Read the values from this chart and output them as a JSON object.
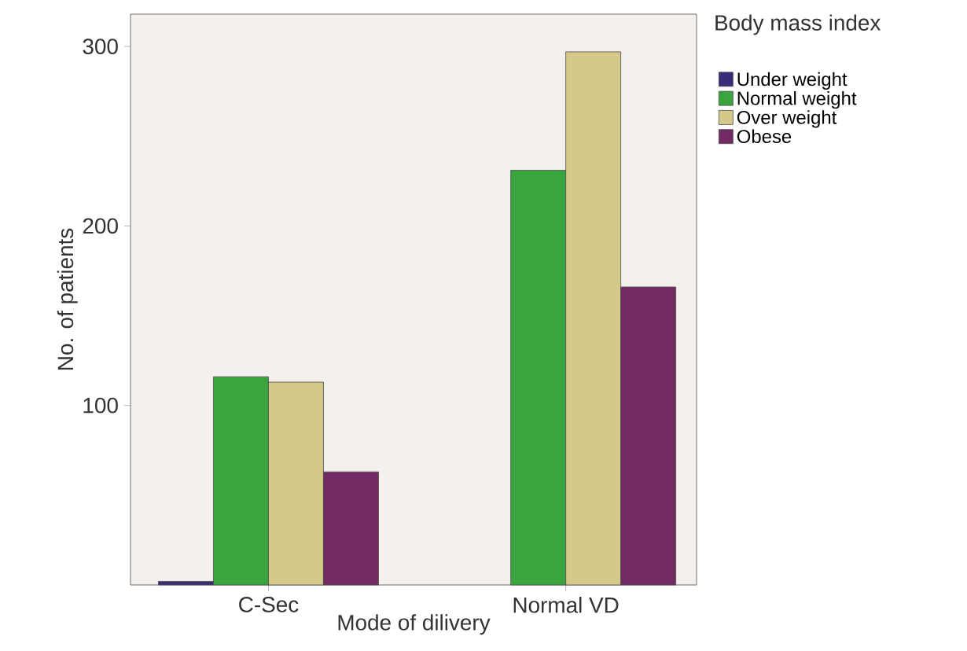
{
  "chart_data": {
    "type": "bar",
    "xlabel": "Mode of dilivery",
    "ylabel": "No. of patients",
    "legend_title": "Body mass index",
    "categories": [
      "C-Sec",
      "Normal VD"
    ],
    "series": [
      {
        "name": "Under weight",
        "color": "#3a2a7a",
        "values": [
          2,
          null
        ]
      },
      {
        "name": "Normal weight",
        "color": "#3aa53f",
        "values": [
          116,
          231
        ]
      },
      {
        "name": "Over weight",
        "color": "#d4c98a",
        "values": [
          113,
          297
        ]
      },
      {
        "name": "Obese",
        "color": "#722a62",
        "values": [
          63,
          166
        ]
      }
    ],
    "ylim": [
      0,
      318
    ],
    "yticks": [
      100,
      200,
      300
    ],
    "legend": "top right",
    "grid": false
  }
}
